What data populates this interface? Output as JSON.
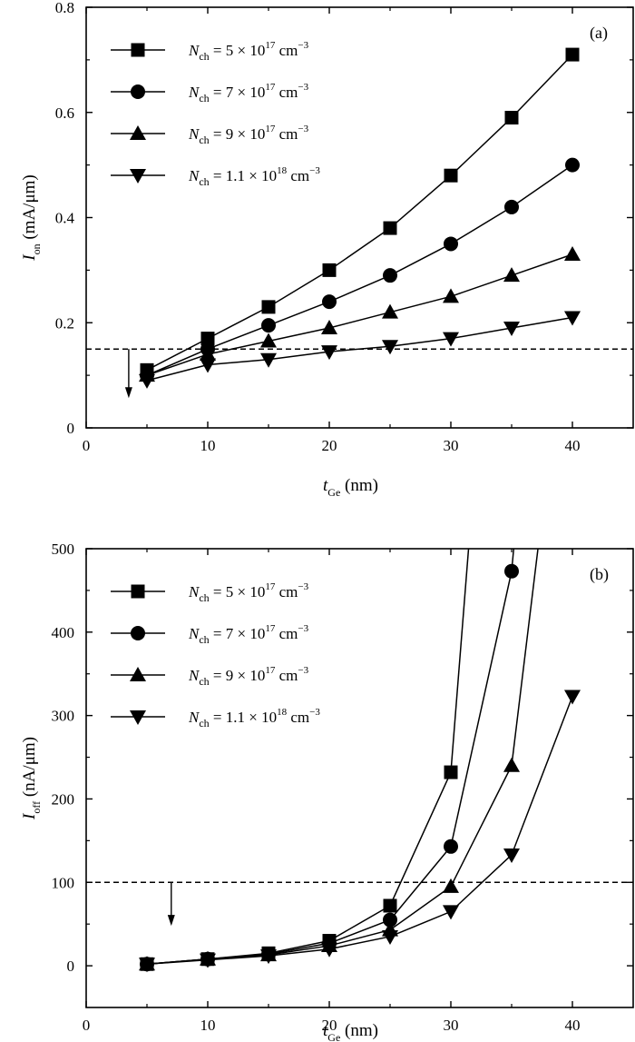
{
  "chart_data": [
    {
      "type": "line",
      "panel_label": "(a)",
      "xlabel": {
        "main": "t",
        "sub": "Ge",
        "unit": "(nm)"
      },
      "ylabel": {
        "main": "I",
        "sub": "on",
        "unit": "(mA/μm)"
      },
      "xlim": [
        0,
        45
      ],
      "ylim": [
        0,
        0.8
      ],
      "xticks": [
        0,
        10,
        20,
        30,
        40
      ],
      "yticks": [
        0,
        0.2,
        0.4,
        0.6,
        0.8
      ],
      "ytick_labels": [
        "0",
        "0.2",
        "0.4",
        "0.6",
        "0.8"
      ],
      "x": [
        5,
        10,
        15,
        20,
        25,
        30,
        35,
        40
      ],
      "reference_line": {
        "y": 0.15,
        "style": "dashed"
      },
      "arrow": {
        "x": 3.5,
        "from": 0.15,
        "to": 0.06
      },
      "legend_position": "top-left",
      "grid": false,
      "series": [
        {
          "name": "N_ch = 5 × 10^17 cm^-3",
          "legend": {
            "base": "5 × 10",
            "exp": "17",
            "unit": " cm",
            "unitexp": "−3"
          },
          "marker": "square",
          "values": [
            0.11,
            0.17,
            0.23,
            0.3,
            0.38,
            0.48,
            0.59,
            0.71
          ]
        },
        {
          "name": "N_ch = 7 × 10^17 cm^-3",
          "legend": {
            "base": "7 × 10",
            "exp": "17",
            "unit": " cm",
            "unitexp": "−3"
          },
          "marker": "circle",
          "values": [
            0.1,
            0.15,
            0.195,
            0.24,
            0.29,
            0.35,
            0.42,
            0.5
          ]
        },
        {
          "name": "N_ch = 9 × 10^17 cm^-3",
          "legend": {
            "base": "9 × 10",
            "exp": "17",
            "unit": " cm",
            "unitexp": "−3"
          },
          "marker": "triangle-up",
          "values": [
            0.1,
            0.14,
            0.165,
            0.19,
            0.22,
            0.25,
            0.29,
            0.33
          ]
        },
        {
          "name": "N_ch = 1.1 × 10^18 cm^-3",
          "legend": {
            "base": "1.1 × 10",
            "exp": "18",
            "unit": " cm",
            "unitexp": "−3"
          },
          "marker": "triangle-down",
          "values": [
            0.09,
            0.12,
            0.13,
            0.145,
            0.155,
            0.17,
            0.19,
            0.21
          ]
        }
      ]
    },
    {
      "type": "line",
      "panel_label": "(b)",
      "xlabel": {
        "main": "t",
        "sub": "Ge",
        "unit": "(nm)"
      },
      "ylabel": {
        "main": "I",
        "sub": "off",
        "unit": "(nA/μm)"
      },
      "xlim": [
        0,
        45
      ],
      "ylim": [
        -50,
        500
      ],
      "xticks": [
        0,
        10,
        20,
        30,
        40
      ],
      "yticks": [
        0,
        100,
        200,
        300,
        400,
        500
      ],
      "ytick_labels": [
        "0",
        "100",
        "200",
        "300",
        "400",
        "500"
      ],
      "x": [
        5,
        10,
        15,
        20,
        25,
        30,
        35,
        40
      ],
      "reference_line": {
        "y": 100,
        "style": "dashed"
      },
      "arrow": {
        "x": 7,
        "from": 100,
        "to": 50
      },
      "legend_position": "top-left",
      "grid": false,
      "series": [
        {
          "name": "N_ch = 5 × 10^17 cm^-3",
          "legend": {
            "base": "5 × 10",
            "exp": "17",
            "unit": " cm",
            "unitexp": "−3"
          },
          "marker": "square",
          "values": [
            2,
            8,
            15,
            30,
            72,
            232,
            null,
            null
          ],
          "line_extension": [
            [
              30,
              232
            ],
            [
              32,
              600
            ]
          ]
        },
        {
          "name": "N_ch = 7 × 10^17 cm^-3",
          "legend": {
            "base": "7 × 10",
            "exp": "17",
            "unit": " cm",
            "unitexp": "−3"
          },
          "marker": "circle",
          "values": [
            2,
            8,
            14,
            27,
            55,
            143,
            473,
            null
          ],
          "line_extension": [
            [
              35,
              473
            ],
            [
              35.8,
              600
            ]
          ]
        },
        {
          "name": "N_ch = 9 × 10^17 cm^-3",
          "legend": {
            "base": "9 × 10",
            "exp": "17",
            "unit": " cm",
            "unitexp": "−3"
          },
          "marker": "triangle-up",
          "values": [
            2,
            8,
            13,
            24,
            43,
            95,
            240,
            null
          ],
          "line_extension": [
            [
              35,
              240
            ],
            [
              38,
              600
            ]
          ]
        },
        {
          "name": "N_ch = 1.1 × 10^18 cm^-3",
          "legend": {
            "base": "1.1 × 10",
            "exp": "18",
            "unit": " cm",
            "unitexp": "−3"
          },
          "marker": "triangle-down",
          "values": [
            2,
            7,
            12,
            20,
            35,
            65,
            133,
            323
          ]
        }
      ]
    }
  ],
  "legend_label": {
    "main": "N",
    "sub": "ch",
    "eq": " = "
  }
}
